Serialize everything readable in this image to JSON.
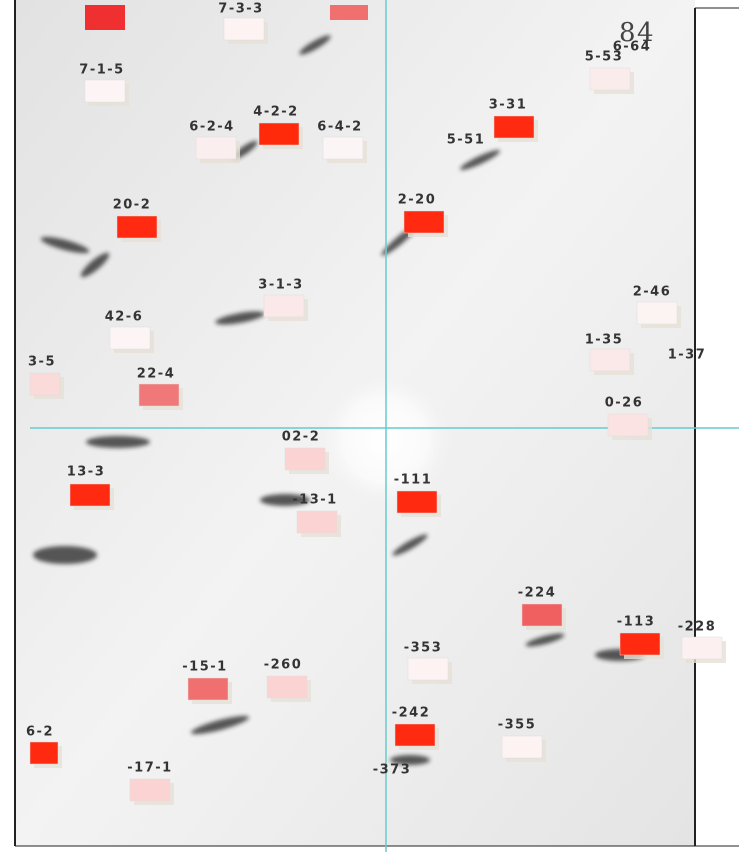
{
  "note_mark": "84",
  "spots": [
    {
      "label": "7-3-3",
      "color": "#fdf3f3"
    },
    {
      "label": "7-1-5",
      "color": "#fdf5f5"
    },
    {
      "label": "6-2-4",
      "color": "#fbeeee"
    },
    {
      "label": "4-2-2",
      "color": "#ff2a0a"
    },
    {
      "label": "6-4-2",
      "color": "#fcf5f5"
    },
    {
      "label": "3-31",
      "color": "#ff2a10"
    },
    {
      "label": "5-51",
      "color": null
    },
    {
      "label": "5-53",
      "color": "#fbecec"
    },
    {
      "label": "6-64",
      "color": null
    },
    {
      "label": "2-20",
      "color": "#ff2a10"
    },
    {
      "label": "20-2",
      "color": "#ff2a10"
    },
    {
      "label": "3-1-3",
      "color": "#fbe8e8"
    },
    {
      "label": "42-6",
      "color": "#fdf5f5"
    },
    {
      "label": "2-46",
      "color": "#fcf3f3"
    },
    {
      "label": "1-35",
      "color": "#fbe8e8"
    },
    {
      "label": "1-37",
      "color": null
    },
    {
      "label": "3-5",
      "color": "#fbdada"
    },
    {
      "label": "22-4",
      "color": "#f07878"
    },
    {
      "label": "0-26",
      "color": "#fbe3e3"
    },
    {
      "label": "02-2",
      "color": "#fbd3d3"
    },
    {
      "label": "13-3",
      "color": "#ff2a10"
    },
    {
      "label": "-111",
      "color": "#ff2a10"
    },
    {
      "label": "-13-1",
      "color": "#fbd3d3"
    },
    {
      "label": "-224",
      "color": "#f06060"
    },
    {
      "label": "-113",
      "color": "#ff2a10"
    },
    {
      "label": "-228",
      "color": "#fdf0f0"
    },
    {
      "label": "-353",
      "color": "#fdf3f3"
    },
    {
      "label": "-15-1",
      "color": "#f07070"
    },
    {
      "label": "-260",
      "color": "#fbd3d3"
    },
    {
      "label": "-242",
      "color": "#ff2a10"
    },
    {
      "label": "-355",
      "color": "#fdf3f3"
    },
    {
      "label": "6-2",
      "color": "#ff2a10"
    },
    {
      "label": "-373",
      "color": null
    },
    {
      "label": "-17-1",
      "color": "#fbd3d3"
    }
  ]
}
